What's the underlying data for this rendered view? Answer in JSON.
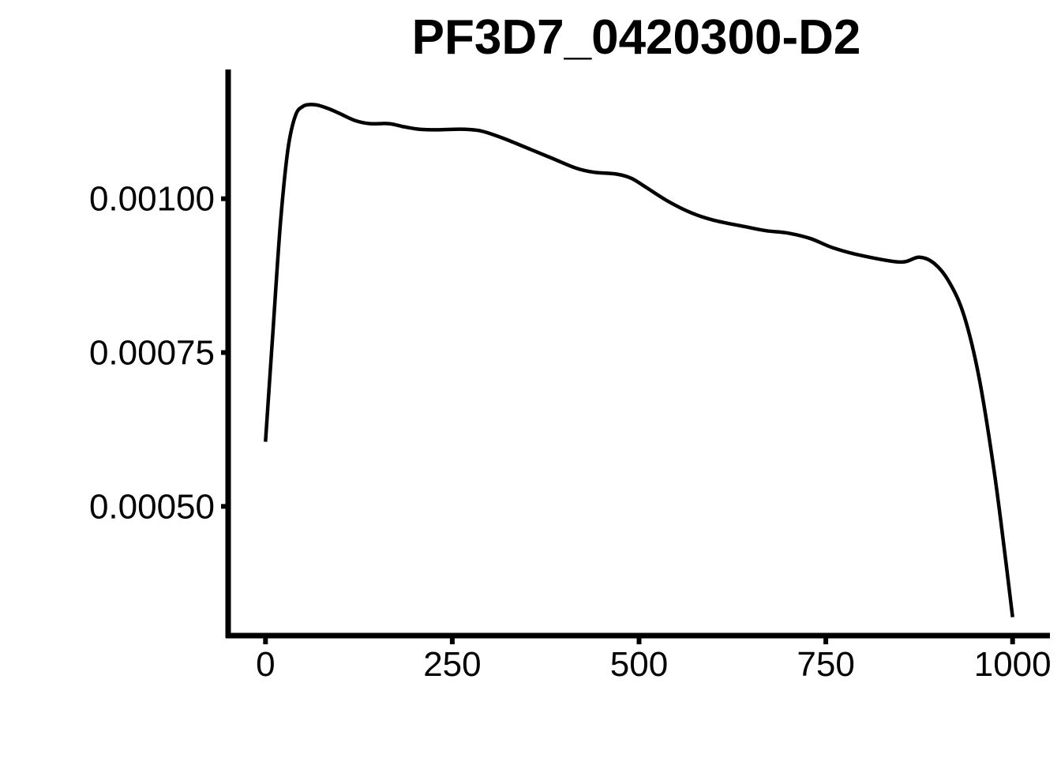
{
  "chart_data": {
    "type": "line",
    "title": "PF3D7_0420300-D2",
    "xlabel": "",
    "ylabel": "",
    "xlim": [
      -50,
      1050
    ],
    "ylim": [
      0.00029,
      0.00121
    ],
    "x_ticks": [
      0,
      250,
      500,
      750,
      1000
    ],
    "x_tick_labels": [
      "0",
      "250",
      "500",
      "750",
      "1000"
    ],
    "y_ticks": [
      0.0005,
      0.00075,
      0.001
    ],
    "y_tick_labels": [
      "0.00050",
      "0.00075",
      "0.00100"
    ],
    "grid": false,
    "legend": "none",
    "line_color": "#000000",
    "series": [
      {
        "x": [
          0,
          10,
          20,
          30,
          40,
          50,
          60,
          70,
          85,
          100,
          120,
          140,
          165,
          185,
          205,
          230,
          260,
          285,
          305,
          325,
          355,
          385,
          415,
          440,
          470,
          490,
          510,
          540,
          570,
          600,
          640,
          670,
          700,
          730,
          760,
          800,
          850,
          875,
          895,
          915,
          935,
          955,
          975,
          990,
          1000
        ],
        "y": [
          0.000605,
          0.000785,
          0.00096,
          0.00108,
          0.001135,
          0.00115,
          0.001153,
          0.001152,
          0.001146,
          0.001138,
          0.001127,
          0.001122,
          0.001122,
          0.001117,
          0.001113,
          0.001112,
          0.001113,
          0.001111,
          0.001104,
          0.001095,
          0.00108,
          0.001065,
          0.00105,
          0.001043,
          0.00104,
          0.001033,
          0.001018,
          0.000995,
          0.000977,
          0.000965,
          0.000955,
          0.000948,
          0.000944,
          0.000935,
          0.00092,
          0.000907,
          0.000897,
          0.000905,
          0.000895,
          0.000865,
          0.00081,
          0.00071,
          0.00056,
          0.00042,
          0.00032
        ]
      }
    ]
  }
}
